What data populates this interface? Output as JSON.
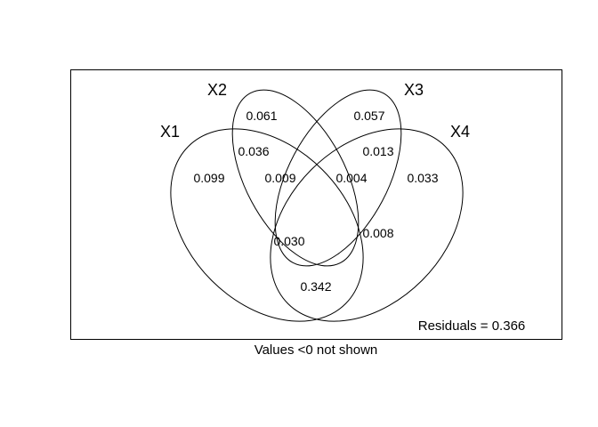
{
  "diagram": {
    "type": "venn",
    "sets": [
      {
        "id": "X1",
        "label": "X1"
      },
      {
        "id": "X2",
        "label": "X2"
      },
      {
        "id": "X3",
        "label": "X3"
      },
      {
        "id": "X4",
        "label": "X4"
      }
    ],
    "regions": [
      {
        "sets": [
          "X1"
        ],
        "value": "0.099"
      },
      {
        "sets": [
          "X2"
        ],
        "value": "0.061"
      },
      {
        "sets": [
          "X3"
        ],
        "value": "0.057"
      },
      {
        "sets": [
          "X4"
        ],
        "value": "0.033"
      },
      {
        "sets": [
          "X1",
          "X2"
        ],
        "value": "0.036"
      },
      {
        "sets": [
          "X3",
          "X4"
        ],
        "value": "0.013"
      },
      {
        "sets": [
          "X1",
          "X2",
          "X3"
        ],
        "value": "0.009"
      },
      {
        "sets": [
          "X2",
          "X3",
          "X4"
        ],
        "value": "0.004"
      },
      {
        "sets": [
          "X1",
          "X3"
        ],
        "value": "0.030"
      },
      {
        "sets": [
          "X2",
          "X4"
        ],
        "value": "0.008"
      },
      {
        "sets": [
          "X1",
          "X4"
        ],
        "value": "0.342"
      }
    ],
    "residuals": "Residuals = 0.366",
    "footnote": "Values <0 not shown"
  }
}
